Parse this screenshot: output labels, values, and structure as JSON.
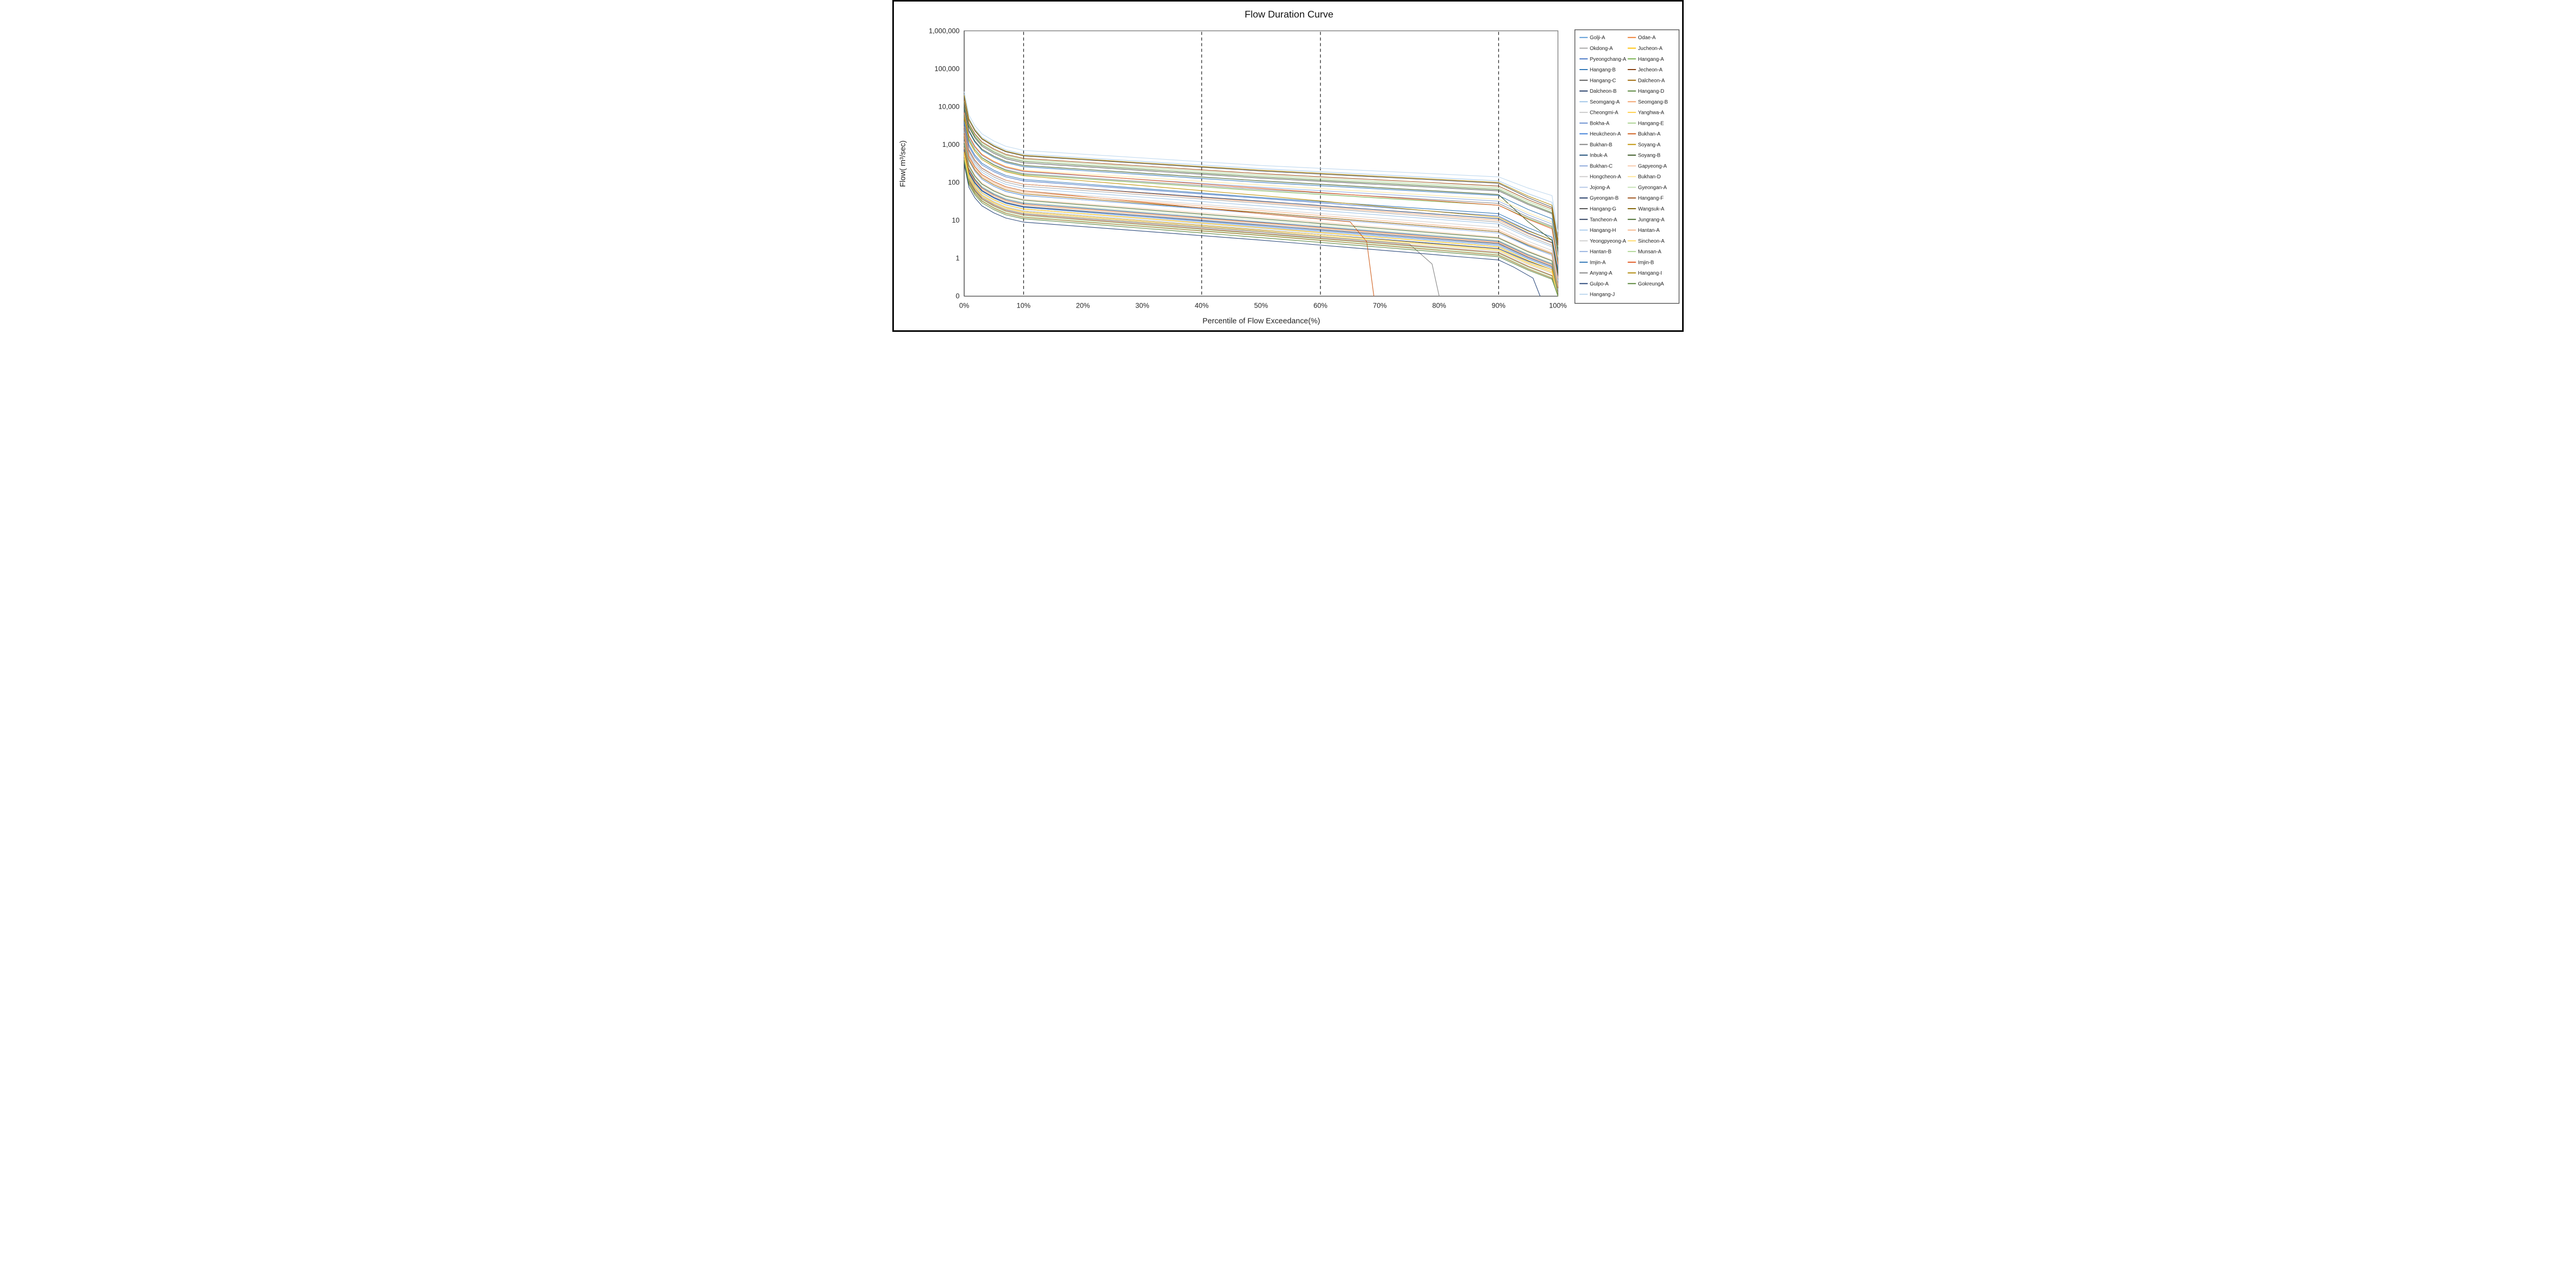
{
  "chart_data": {
    "type": "line",
    "title": "Flow Duration Curve",
    "xlabel": "Percentile of Flow Exceedance(%)",
    "ylabel": "Flow( m³/sec)",
    "x_axis": {
      "tick_labels": [
        "0%",
        "10%",
        "20%",
        "30%",
        "40%",
        "50%",
        "60%",
        "70%",
        "80%",
        "90%",
        "100%"
      ],
      "tick_values": [
        0,
        10,
        20,
        30,
        40,
        50,
        60,
        70,
        80,
        90,
        100
      ]
    },
    "y_axis": {
      "scale": "log",
      "tick_labels": [
        "0",
        "1",
        "10",
        "100",
        "1,000",
        "10,000",
        "100,000",
        "1,000,000"
      ],
      "tick_values": [
        0.1,
        1,
        10,
        100,
        1000,
        10000,
        100000,
        1000000
      ],
      "ylim": [
        0.1,
        1000000
      ]
    },
    "gridlines": {
      "vertical_dashed_at_percent": [
        10,
        40,
        60,
        90
      ],
      "horizontal": false
    },
    "legend": {
      "position": "right",
      "columns": 2,
      "rows_per_column": [
        25,
        24
      ]
    },
    "sample_percentiles": [
      0,
      10,
      50,
      90,
      99,
      100
    ],
    "series": [
      {
        "name": "Golji-A",
        "color": "#5B9BD5",
        "values": [
          1500,
          45,
          16,
          5,
          1.2,
          0.15
        ]
      },
      {
        "name": "Okdong-A",
        "color": "#A5A5A5",
        "values": [
          2500,
          80,
          28,
          9,
          2.2,
          0.3
        ]
      },
      {
        "name": "Pyeongchang-A",
        "color": "#4472C4",
        "values": [
          3500,
          110,
          38,
          13,
          3,
          0.4
        ]
      },
      {
        "name": "Hangang-B",
        "color": "#2E75B6",
        "values": [
          9000,
          260,
          100,
          45,
          11,
          1.2
        ]
      },
      {
        "name": "Hangang-C",
        "color": "#595959",
        "values": [
          12000,
          330,
          130,
          60,
          15,
          1.5
        ]
      },
      {
        "name": "Dalcheon-B",
        "color": "#1F3864",
        "values": [
          2800,
          90,
          32,
          11,
          2.6,
          0.35
        ]
      },
      {
        "name": "Seomgang-A",
        "color": "#9DC3E6",
        "values": [
          2200,
          70,
          24,
          8,
          2,
          0.25
        ]
      },
      {
        "name": "Cheongmi-A",
        "color": "#C9C9C9",
        "values": [
          800,
          24,
          8,
          2.5,
          0.6,
          0.1
        ]
      },
      {
        "name": "Bokha-A",
        "color": "#698ED0",
        "values": [
          650,
          20,
          6.5,
          2,
          0.5,
          0.1
        ]
      },
      {
        "name": "Heukcheon-A",
        "color": "#3B7DD8",
        "values": [
          700,
          22,
          7,
          2.2,
          0.55,
          0.1
        ]
      },
      {
        "name": "Bukhan-B",
        "color": "#7F7F7F",
        "values": [
          5500,
          170,
          65,
          28,
          7,
          0.9
        ]
      },
      {
        "name": "Inbuk-A",
        "color": "#1F4E79",
        "values": [
          900,
          28,
          9,
          2.8,
          0.7,
          0.1
        ]
      },
      {
        "name": "Bukhan-C",
        "color": "#8FAADC",
        "values": [
          6500,
          190,
          75,
          32,
          8,
          1
        ]
      },
      {
        "name": "Hongcheon-A",
        "color": "#D0CECE",
        "values": [
          2000,
          60,
          20,
          6.5,
          1.6,
          0.2
        ]
      },
      {
        "name": "Jojong-A",
        "color": "#B4C7E7",
        "values": [
          600,
          18,
          6,
          1.8,
          0.45,
          0.1
        ]
      },
      {
        "name": "Gyeongan-B",
        "color": "#203864",
        "values": [
          750,
          23,
          7.5,
          2.4,
          0.6,
          0.1
        ]
      },
      {
        "name": "Hangang-G",
        "color": "#525252",
        "values": [
          19000,
          500,
          200,
          95,
          22,
          2.5
        ]
      },
      {
        "name": "Tancheon-A",
        "color": "#2D3E5F",
        "values": [
          550,
          17,
          5.5,
          1.8,
          0.5,
          0.1
        ]
      },
      {
        "name": "Hangang-H",
        "color": "#A6CAEC",
        "values": [
          21000,
          560,
          230,
          110,
          30,
          3.5
        ]
      },
      {
        "name": "Yeongpyeong-A",
        "color": "#CFCFCF",
        "values": [
          480,
          15,
          4.8,
          1.5,
          0.4,
          0.1
        ]
      },
      {
        "name": "Hantan-B",
        "color": "#97B2E0",
        "values": [
          1500,
          46,
          15,
          4.6,
          1.2,
          0.15
        ]
      },
      {
        "name": "Imjin-A",
        "color": "#2E74B5",
        "values": [
          4000,
          120,
          40,
          15,
          3.6,
          0.5
        ]
      },
      {
        "name": "Anyang-A",
        "color": "#808080",
        "values": [
          500,
          15,
          5,
          1.5,
          0.4,
          0.1
        ],
        "drop_to_zero_at": 80
      },
      {
        "name": "Gulpo-A",
        "color": "#264478",
        "values": [
          300,
          9,
          3,
          0.9,
          0.22,
          0.1
        ],
        "drop_to_zero_at": 97
      },
      {
        "name": "Hangang-J",
        "color": "#BDD7EE",
        "values": [
          25000,
          700,
          280,
          140,
          45,
          5
        ]
      },
      {
        "name": "Odae-A",
        "color": "#ED7D31",
        "values": [
          850,
          26,
          8.5,
          2.6,
          0.65,
          0.1
        ]
      },
      {
        "name": "Jucheon-A",
        "color": "#FFC000",
        "values": [
          640,
          20,
          6.4,
          2,
          0.5,
          0.1
        ]
      },
      {
        "name": "Hangang-A",
        "color": "#70AD47",
        "values": [
          6000,
          160,
          60,
          25,
          6.5,
          0.8
        ]
      },
      {
        "name": "Jecheon-A",
        "color": "#843C0C",
        "values": [
          450,
          14,
          4.5,
          1.4,
          0.35,
          0.1
        ]
      },
      {
        "name": "Dalcheon-A",
        "color": "#9C6500",
        "values": [
          1600,
          50,
          16,
          5,
          1.3,
          0.16
        ]
      },
      {
        "name": "Hangang-D",
        "color": "#538135",
        "values": [
          13000,
          360,
          140,
          65,
          16,
          1.8
        ]
      },
      {
        "name": "Seomgang-B",
        "color": "#F2A06B",
        "values": [
          3000,
          90,
          30,
          10,
          2.5,
          0.3
        ]
      },
      {
        "name": "Yanghwa-A",
        "color": "#FFCE45",
        "values": [
          560,
          17,
          5.6,
          1.7,
          0.45,
          0.1
        ]
      },
      {
        "name": "Hangang-E",
        "color": "#A9D18E",
        "values": [
          14000,
          400,
          155,
          72,
          18,
          2
        ]
      },
      {
        "name": "Bukhan-A",
        "color": "#CE5B17",
        "values": [
          2000,
          60,
          15,
          4,
          1,
          0.1
        ],
        "drop_to_zero_at": 69
      },
      {
        "name": "Soyang-A",
        "color": "#BF9000",
        "values": [
          5000,
          150,
          45,
          12,
          3,
          0.4
        ]
      },
      {
        "name": "Soyang-B",
        "color": "#385723",
        "values": [
          9500,
          280,
          110,
          48,
          3,
          0.4
        ]
      },
      {
        "name": "Gapyeong-A",
        "color": "#F8CBAD",
        "values": [
          1200,
          36,
          12,
          3.6,
          0.9,
          0.12
        ]
      },
      {
        "name": "Bukhan-D",
        "color": "#FFE699",
        "values": [
          7000,
          210,
          85,
          36,
          9,
          1.1
        ]
      },
      {
        "name": "Gyeongan-A",
        "color": "#C5E0B4",
        "values": [
          1000,
          30,
          10,
          3,
          0.75,
          0.1
        ]
      },
      {
        "name": "Hangang-F",
        "color": "#9C4E16",
        "values": [
          15000,
          430,
          170,
          80,
          20,
          2.2
        ]
      },
      {
        "name": "Wangsuk-A",
        "color": "#7F6000",
        "values": [
          400,
          12,
          4,
          1.2,
          0.3,
          0.1
        ]
      },
      {
        "name": "Jungrang-A",
        "color": "#466B2C",
        "values": [
          1100,
          34,
          11,
          3.4,
          0.85,
          0.11
        ]
      },
      {
        "name": "Hantan-A",
        "color": "#F4B183",
        "values": [
          1800,
          55,
          18,
          5.5,
          1.4,
          0.18
        ]
      },
      {
        "name": "Sincheon-A",
        "color": "#FFD966",
        "values": [
          520,
          16,
          5.2,
          1.6,
          0.42,
          0.1
        ]
      },
      {
        "name": "Munsan-A",
        "color": "#AFD695",
        "values": [
          430,
          13,
          4.3,
          1.3,
          0.33,
          0.1
        ]
      },
      {
        "name": "Imjin-B",
        "color": "#E1571F",
        "values": [
          7000,
          200,
          70,
          25,
          6,
          0.7
        ]
      },
      {
        "name": "Hangang-I",
        "color": "#AD8502",
        "values": [
          20000,
          520,
          210,
          100,
          25,
          3
        ]
      },
      {
        "name": "GokreungA",
        "color": "#548235",
        "values": [
          350,
          11,
          3.5,
          1.1,
          0.28,
          0.1
        ]
      }
    ]
  }
}
